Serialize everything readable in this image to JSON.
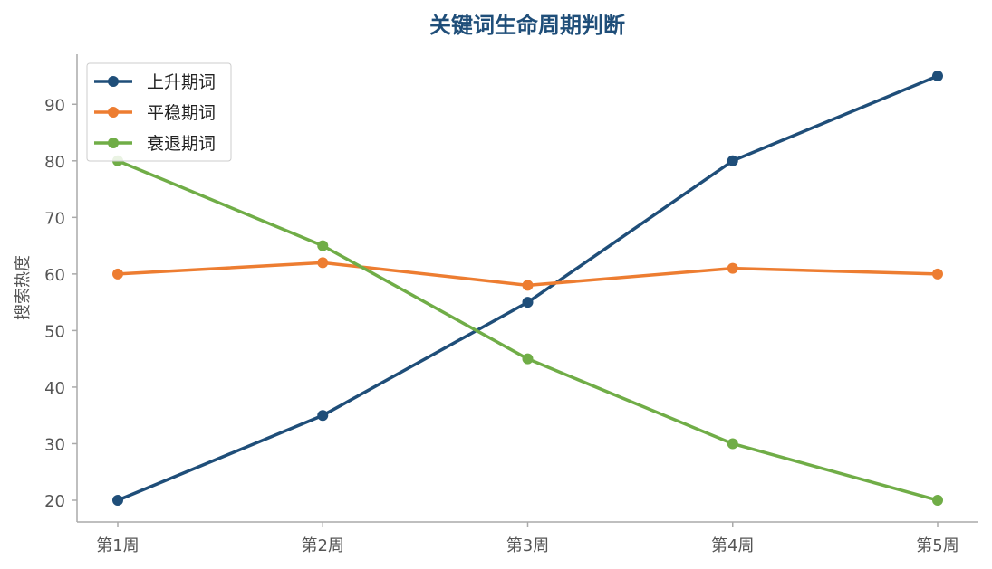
{
  "chart_data": {
    "type": "line",
    "title": "关键词生命周期判断",
    "xlabel": "",
    "ylabel": "搜索热度",
    "categories": [
      "第1周",
      "第2周",
      "第3周",
      "第4周",
      "第5周"
    ],
    "yticks": [
      20,
      30,
      40,
      50,
      60,
      70,
      80,
      90
    ],
    "ylim": [
      17,
      99
    ],
    "grid": false,
    "legend_position": "top-left",
    "series": [
      {
        "name": "上升期词",
        "values": [
          20,
          35,
          55,
          80,
          95
        ],
        "color": "#1f4e79"
      },
      {
        "name": "平稳期词",
        "values": [
          60,
          62,
          58,
          61,
          60
        ],
        "color": "#ed7d31"
      },
      {
        "name": "衰退期词",
        "values": [
          80,
          65,
          45,
          30,
          20
        ],
        "color": "#70ad47"
      }
    ],
    "colors": {
      "title": "#1f4e79",
      "axis": "#aaaaaa",
      "tick_text": "#555555"
    }
  }
}
